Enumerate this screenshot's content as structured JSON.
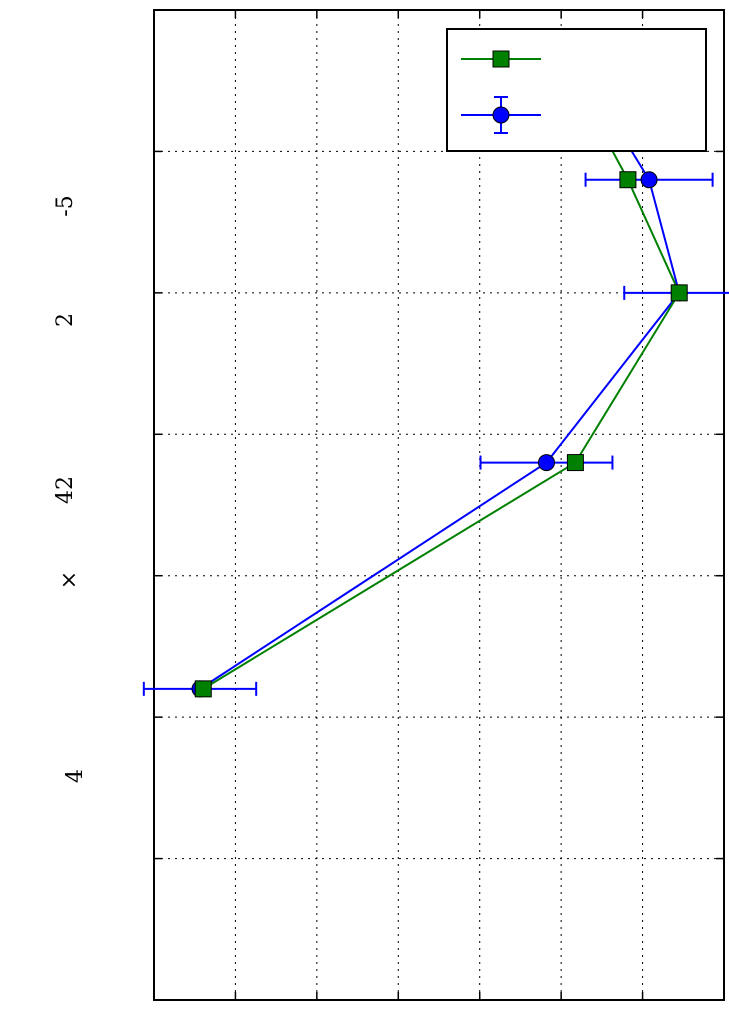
{
  "chart_data": {
    "type": "line",
    "orientation": "rotated-90",
    "ylim": [
      0,
      14
    ],
    "tick_label_texts": [
      "-5",
      "2",
      "42",
      "×",
      "4"
    ],
    "grid": true,
    "legend_placement": "top-right",
    "series": [
      {
        "color": "#008000",
        "marker": "square",
        "x": [
          0.1,
          0.2,
          0.3,
          0.6,
          1.0,
          1.6,
          2.4
        ],
        "y": [
          9.36,
          9.95,
          10.52,
          11.64,
          12.9,
          10.35,
          1.21
        ],
        "yerr": [
          0,
          0,
          0,
          0,
          0,
          0,
          0
        ]
      },
      {
        "color": "#0000ff",
        "marker": "circle",
        "x": [
          0.1,
          0.2,
          0.3,
          0.6,
          1.0,
          1.6,
          2.4
        ],
        "y": [
          9.36,
          9.64,
          10.89,
          12.16,
          12.9,
          9.64,
          1.13
        ],
        "yerr": [
          1.57,
          1.36,
          1.38,
          1.56,
          1.35,
          1.62,
          1.38
        ]
      }
    ]
  }
}
